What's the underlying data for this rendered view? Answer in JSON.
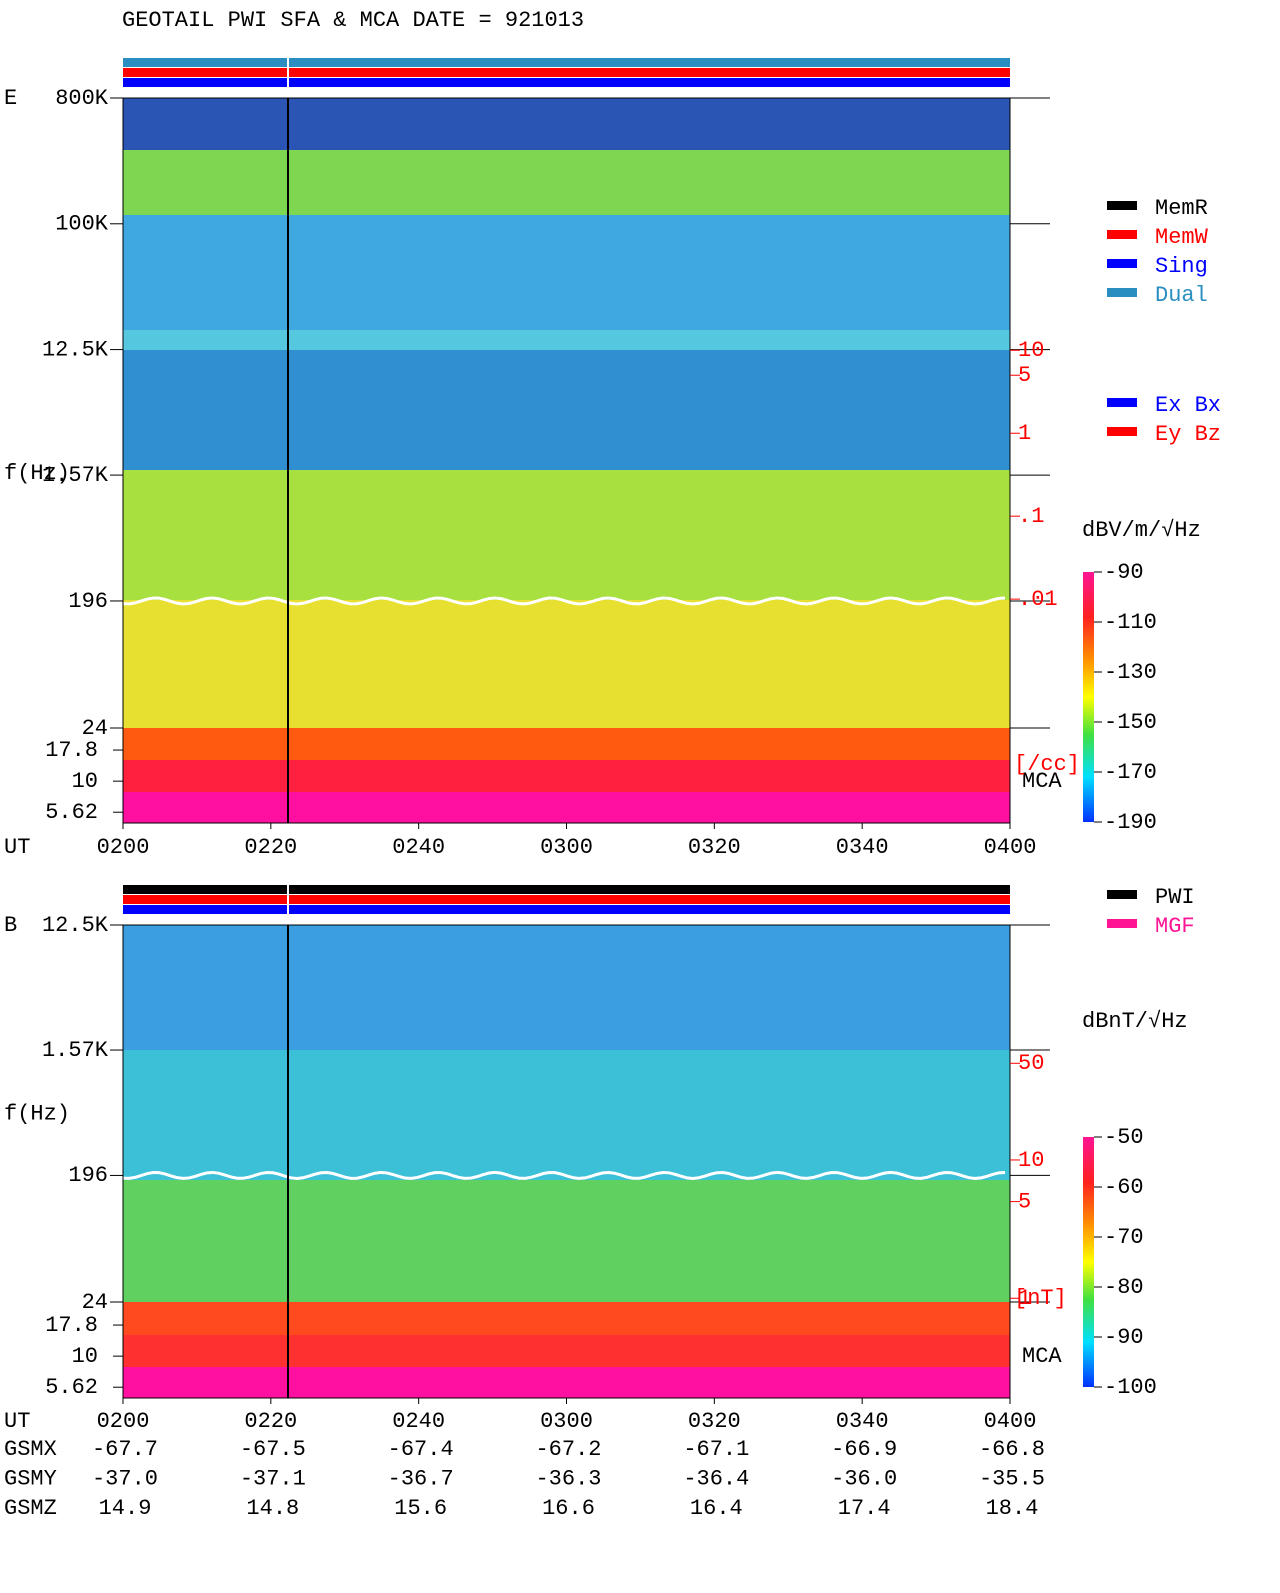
{
  "title": "GEOTAIL  PWI SFA & MCA   DATE = 921013",
  "chart_data": [
    {
      "type": "spectrogram",
      "panel_label": "E",
      "ylabel": "f(Hz)",
      "xlabel": "UT",
      "mca_label": "MCA",
      "x": [
        "0200",
        "0220",
        "0240",
        "0300",
        "0320",
        "0340",
        "0400"
      ],
      "log_y": true,
      "ylim": [
        24,
        800000
      ],
      "yticks": [
        {
          "value": 800000,
          "label": "800K"
        },
        {
          "value": 100000,
          "label": "100K"
        },
        {
          "value": 12500,
          "label": "12.5K"
        },
        {
          "value": 1570,
          "label": "1.57K"
        },
        196,
        24
      ],
      "mca_ylim": [
        4.6,
        26.8
      ],
      "mca_yticks": [
        17.8,
        10,
        5.62
      ],
      "y2lim": [
        2e-05,
        11000
      ],
      "y2ticks": [
        10,
        5,
        1,
        {
          "value": 0.1,
          "label": ".1"
        },
        {
          "value": 0.01,
          "label": ".01"
        }
      ],
      "y2label": "[/cc]",
      "y2color": "#ff0000",
      "status_bar_colors": [
        "#2a8fc0",
        "#ff0000",
        "#0000ff"
      ],
      "legend": [
        {
          "name": "MemR",
          "color": "#000000"
        },
        {
          "name": "MemW",
          "color": "#ff0000"
        },
        {
          "name": "Sing",
          "color": "#0000ff"
        },
        {
          "name": "Dual",
          "color": "#2a8fc0"
        }
      ],
      "legend2": [
        {
          "name": "Ex Bx",
          "color": "#0000ff"
        },
        {
          "name": "Ey Bz",
          "color": "#ff0000"
        }
      ],
      "colorbar": {
        "label": "dBV/m/√Hz",
        "clim": [
          -190,
          -90
        ],
        "ticks": [
          -90,
          -110,
          -130,
          -150,
          -170,
          -190
        ]
      }
    },
    {
      "type": "spectrogram",
      "panel_label": "B",
      "ylabel": "f(Hz)",
      "xlabel": "UT",
      "mca_label": "MCA",
      "x": [
        "0200",
        "0220",
        "0240",
        "0300",
        "0320",
        "0340",
        "0400"
      ],
      "log_y": true,
      "ylim": [
        24,
        12500
      ],
      "yticks": [
        {
          "value": 12500,
          "label": "12.5K"
        },
        {
          "value": 1570,
          "label": "1.57K"
        },
        196,
        24
      ],
      "mca_ylim": [
        4.6,
        27.3
      ],
      "mca_yticks": [
        17.8,
        10,
        5.62
      ],
      "y2lim": [
        0.19,
        500
      ],
      "y2ticks": [
        50,
        10,
        5,
        1
      ],
      "y2label": "[nT]",
      "y2color": "#ff0000",
      "status_bar_colors": [
        "#000000",
        "#ff0000",
        "#0000ff"
      ],
      "legend": [
        {
          "name": "PWI",
          "color": "#000000"
        },
        {
          "name": "MGF",
          "color": "#ff1493"
        }
      ],
      "colorbar": {
        "label": "dBnT/√Hz",
        "clim": [
          -100,
          -50
        ],
        "ticks": [
          -50,
          -60,
          -70,
          -80,
          -90,
          -100
        ]
      }
    }
  ],
  "orbit": {
    "labels": [
      "GSMX",
      "GSMY",
      "GSMZ"
    ],
    "rows": [
      [
        "-67.7",
        "-67.5",
        "-67.4",
        "-67.2",
        "-67.1",
        "-66.9",
        "-66.8"
      ],
      [
        "-37.0",
        "-37.1",
        "-36.7",
        "-36.3",
        "-36.4",
        "-36.0",
        "-35.5"
      ],
      [
        "14.9",
        "14.8",
        "15.6",
        "16.6",
        "16.4",
        "17.4",
        "18.4"
      ]
    ]
  }
}
